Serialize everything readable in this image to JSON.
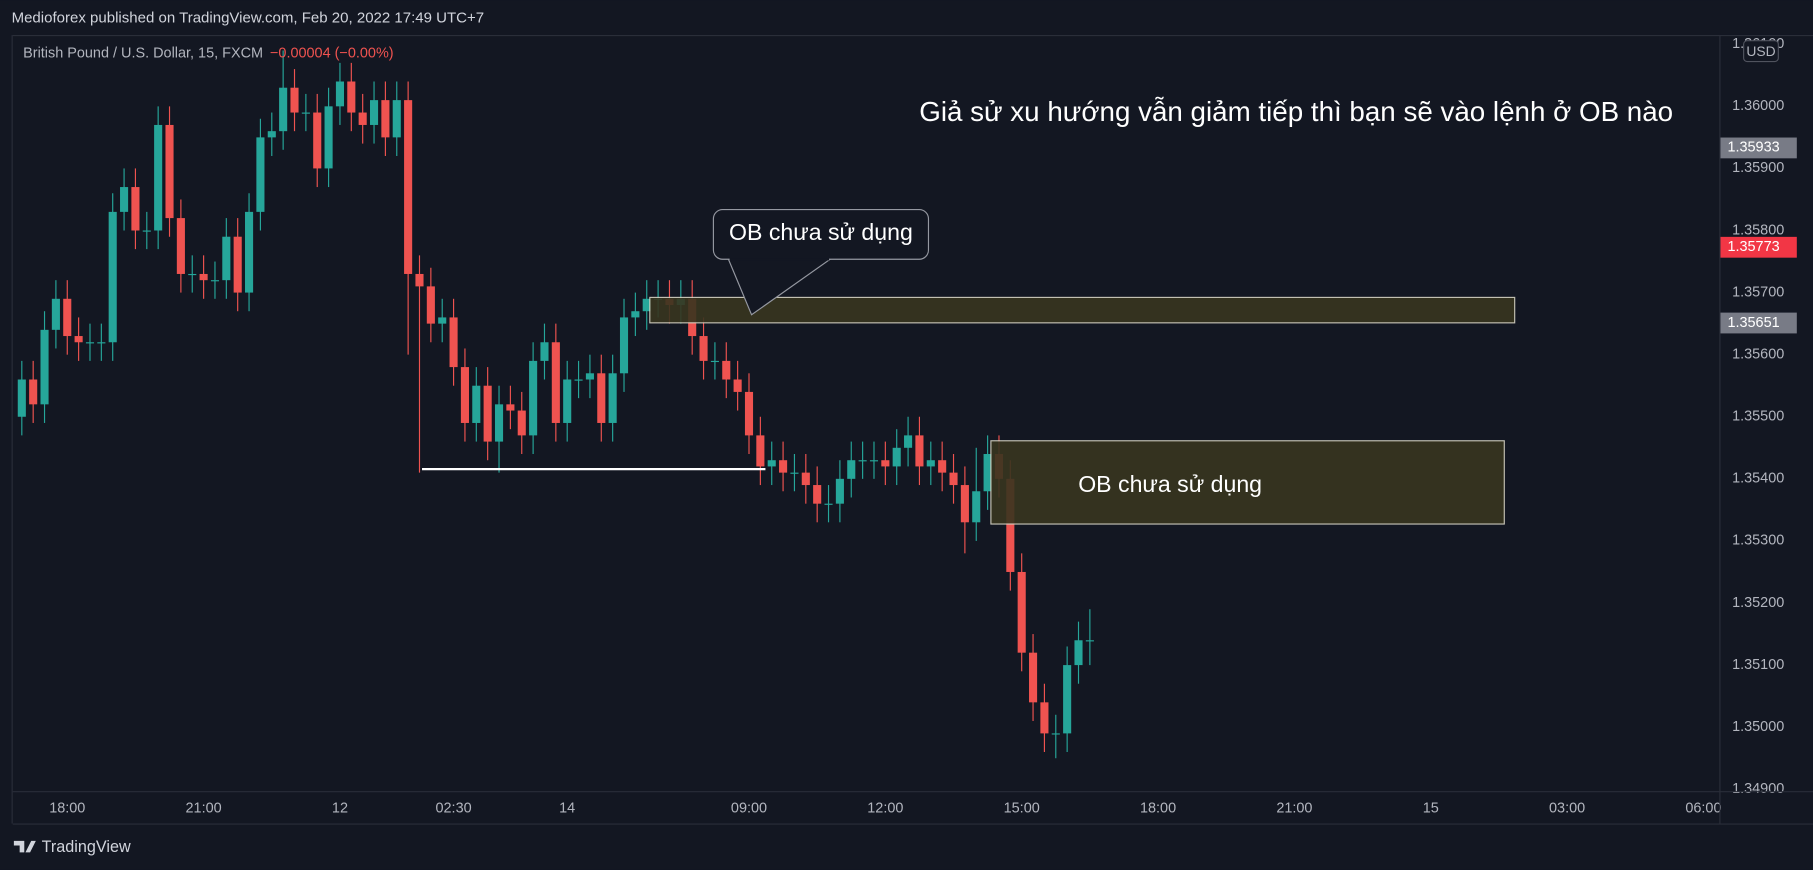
{
  "chart_data": {
    "type": "candlestick",
    "source": "Medioforex published on TradingView.com, Feb 20, 2022 17:49 UTC+7",
    "title": "British Pound / U.S. Dollar, 15, FXCM",
    "change": "−0.00004 (−0.00%)",
    "annotation": "Giả sử xu hướng vẫn giảm tiếp thì bạn sẽ vào lệnh ở OB nào",
    "ob_labels": [
      "OB chưa sử dụng",
      "OB chưa sử dụng"
    ],
    "currency": "USD",
    "footer": "TradingView",
    "up_color": "#26a69a",
    "down_color": "#ef5350",
    "grid": false,
    "open": [
      1.355,
      1.3556,
      1.3552,
      1.3564,
      1.3569,
      1.3563,
      1.3562,
      1.3562,
      1.3562,
      1.3583,
      1.3587,
      1.358,
      1.358,
      1.3597,
      1.3582,
      1.3573,
      1.3573,
      1.3572,
      1.3572,
      1.3579,
      1.357,
      1.3583,
      1.3595,
      1.3596,
      1.3603,
      1.3599,
      1.3599,
      1.359,
      1.36,
      1.3604,
      1.3599,
      1.3597,
      1.3601,
      1.3595,
      1.3601,
      1.3573,
      1.3571,
      1.3565,
      1.3566,
      1.3558,
      1.3549,
      1.3555,
      1.3546,
      1.3552,
      1.3551,
      1.3547,
      1.3559,
      1.3562,
      1.3549,
      1.3556,
      1.3556,
      1.3557,
      1.3549,
      1.3557,
      1.3566,
      1.3567,
      1.3569,
      1.3569,
      1.3568,
      1.3569,
      1.3563,
      1.3559,
      1.3559,
      1.3556,
      1.3554,
      1.3547,
      1.3542,
      1.3543,
      1.3541,
      1.3541,
      1.3539,
      1.3536,
      1.3536,
      1.354,
      1.3543,
      1.3543,
      1.3543,
      1.3542,
      1.3545,
      1.3547,
      1.3542,
      1.3543,
      1.3541,
      1.3539,
      1.3533,
      1.3538,
      1.3544,
      1.354,
      1.3525,
      1.3512,
      1.3504,
      1.3499,
      1.3499,
      1.351,
      1.3514
    ],
    "high": [
      1.3559,
      1.3559,
      1.3567,
      1.3572,
      1.3572,
      1.3566,
      1.3565,
      1.3565,
      1.3586,
      1.359,
      1.359,
      1.3583,
      1.36,
      1.36,
      1.3585,
      1.3576,
      1.3576,
      1.3575,
      1.3582,
      1.3582,
      1.3586,
      1.3598,
      1.3599,
      1.3609,
      1.3606,
      1.3602,
      1.3602,
      1.3603,
      1.3607,
      1.3607,
      1.3602,
      1.3604,
      1.3604,
      1.3604,
      1.3604,
      1.3576,
      1.3574,
      1.3569,
      1.3569,
      1.3561,
      1.3558,
      1.3558,
      1.3555,
      1.3555,
      1.3554,
      1.3562,
      1.3565,
      1.3565,
      1.3559,
      1.3559,
      1.356,
      1.356,
      1.356,
      1.3569,
      1.357,
      1.3572,
      1.3572,
      1.3572,
      1.3572,
      1.3572,
      1.3566,
      1.3562,
      1.3562,
      1.3559,
      1.3557,
      1.355,
      1.3546,
      1.3546,
      1.3544,
      1.3544,
      1.3542,
      1.3539,
      1.3543,
      1.3546,
      1.3546,
      1.3546,
      1.3546,
      1.3548,
      1.355,
      1.355,
      1.3546,
      1.3546,
      1.3544,
      1.3542,
      1.3545,
      1.3547,
      1.3547,
      1.3543,
      1.3528,
      1.3515,
      1.3507,
      1.3502,
      1.3513,
      1.3517,
      1.3519
    ],
    "low": [
      1.3547,
      1.3549,
      1.3549,
      1.3561,
      1.356,
      1.3559,
      1.3559,
      1.3559,
      1.3559,
      1.358,
      1.3577,
      1.3577,
      1.3577,
      1.3579,
      1.357,
      1.357,
      1.3569,
      1.3569,
      1.3569,
      1.3567,
      1.3567,
      1.358,
      1.3592,
      1.3593,
      1.3596,
      1.3596,
      1.3587,
      1.3587,
      1.3597,
      1.3596,
      1.3594,
      1.3594,
      1.3592,
      1.3592,
      1.356,
      1.3541,
      1.3562,
      1.3562,
      1.3555,
      1.3546,
      1.3546,
      1.3543,
      1.3541,
      1.3548,
      1.3544,
      1.3544,
      1.3556,
      1.3546,
      1.3546,
      1.3553,
      1.3553,
      1.3546,
      1.3546,
      1.3554,
      1.3563,
      1.3564,
      1.3566,
      1.3565,
      1.3565,
      1.356,
      1.3556,
      1.3556,
      1.3553,
      1.3551,
      1.3544,
      1.3539,
      1.3539,
      1.3538,
      1.3538,
      1.3536,
      1.3533,
      1.3533,
      1.3533,
      1.3537,
      1.354,
      1.354,
      1.3539,
      1.3539,
      1.3542,
      1.3539,
      1.3539,
      1.3538,
      1.3536,
      1.3528,
      1.353,
      1.3535,
      1.3537,
      1.3522,
      1.3509,
      1.3501,
      1.3496,
      1.3495,
      1.3496,
      1.3507,
      1.351
    ],
    "close": [
      1.3556,
      1.3552,
      1.3564,
      1.3569,
      1.3563,
      1.3562,
      1.3562,
      1.3562,
      1.3583,
      1.3587,
      1.358,
      1.358,
      1.3597,
      1.3582,
      1.3573,
      1.3573,
      1.3572,
      1.3572,
      1.3579,
      1.357,
      1.3583,
      1.3595,
      1.3596,
      1.3603,
      1.3599,
      1.3599,
      1.359,
      1.36,
      1.3604,
      1.3599,
      1.3597,
      1.3601,
      1.3595,
      1.3601,
      1.3573,
      1.3571,
      1.3565,
      1.3566,
      1.3558,
      1.3549,
      1.3555,
      1.3546,
      1.3552,
      1.3551,
      1.3547,
      1.3559,
      1.3562,
      1.3549,
      1.3556,
      1.3556,
      1.3557,
      1.3549,
      1.3557,
      1.3566,
      1.3567,
      1.3569,
      1.3569,
      1.3568,
      1.3569,
      1.3563,
      1.3559,
      1.3559,
      1.3556,
      1.3554,
      1.3547,
      1.3542,
      1.3543,
      1.3541,
      1.3541,
      1.3539,
      1.3536,
      1.3536,
      1.354,
      1.3543,
      1.3543,
      1.3543,
      1.3542,
      1.3545,
      1.3547,
      1.3542,
      1.3543,
      1.3541,
      1.3539,
      1.3533,
      1.3538,
      1.3544,
      1.354,
      1.3525,
      1.3512,
      1.3504,
      1.3499,
      1.3499,
      1.351,
      1.3514,
      1.3514
    ],
    "xlim": [
      -0.8,
      149.4
    ],
    "xticks": [
      {
        "value": 4,
        "label": "18:00"
      },
      {
        "value": 16,
        "label": "21:00"
      },
      {
        "value": 28,
        "label": "12"
      },
      {
        "value": 38,
        "label": "02:30"
      },
      {
        "value": 48,
        "label": "14"
      },
      {
        "value": 64,
        "label": "09:00"
      },
      {
        "value": 76,
        "label": "12:00"
      },
      {
        "value": 88,
        "label": "15:00"
      },
      {
        "value": 100,
        "label": "18:00"
      },
      {
        "value": 112,
        "label": "21:00"
      },
      {
        "value": 124,
        "label": "15"
      },
      {
        "value": 136,
        "label": "03:00"
      },
      {
        "value": 148,
        "label": "06:00"
      }
    ],
    "ylim": [
      1.34897,
      1.36115
    ],
    "yticks": [
      {
        "value": 1.361,
        "label": "1.36100"
      },
      {
        "value": 1.36,
        "label": "1.36000"
      },
      {
        "value": 1.359,
        "label": "1.35900"
      },
      {
        "value": 1.358,
        "label": "1.35800"
      },
      {
        "value": 1.357,
        "label": "1.35700"
      },
      {
        "value": 1.356,
        "label": "1.35600"
      },
      {
        "value": 1.355,
        "label": "1.35500"
      },
      {
        "value": 1.354,
        "label": "1.35400"
      },
      {
        "value": 1.353,
        "label": "1.35300"
      },
      {
        "value": 1.352,
        "label": "1.35200"
      },
      {
        "value": 1.351,
        "label": "1.35100"
      },
      {
        "value": 1.35,
        "label": "1.35000"
      },
      {
        "value": 1.349,
        "label": "1.34900"
      }
    ],
    "price_labels": [
      {
        "value": 1.35933,
        "label": "1.35933",
        "color": "#787b86"
      },
      {
        "value": 1.35773,
        "label": "1.35773",
        "color": "#f23645"
      },
      {
        "value": 1.35651,
        "label": "1.35651",
        "color": "#787b86"
      }
    ]
  }
}
